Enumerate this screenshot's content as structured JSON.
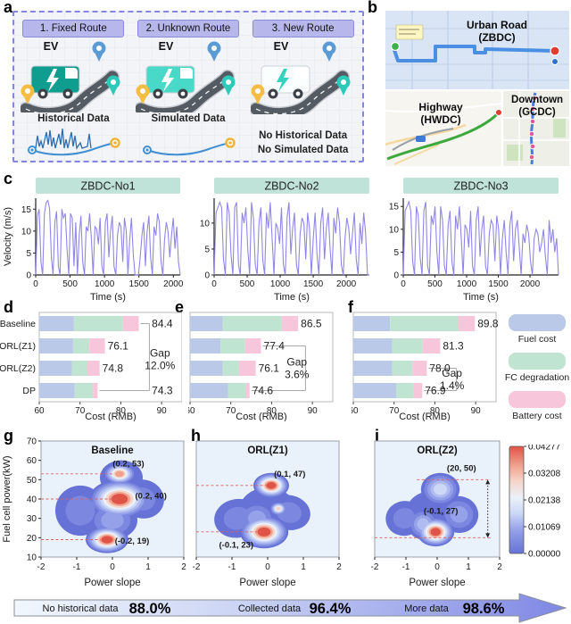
{
  "labels": {
    "a": "a",
    "b": "b",
    "c": "c",
    "d": "d",
    "e": "e",
    "f": "f",
    "g": "g",
    "h": "h",
    "i": "i"
  },
  "colors": {
    "velocity_line": "#9186e8",
    "chart_header_bg": "#bfe3d9",
    "plot_bg": "#e9f1fa",
    "bar_fuel": "#bac9e8",
    "bar_fc": "#c0e4d2",
    "bar_battery": "#f8c6da",
    "contour_scale": [
      "#6672d6",
      "#7c88e0",
      "#95a1e9",
      "#b0bcf0",
      "#cdd8f6",
      "#ebf1fa",
      "#f6d4c8",
      "#f0a18e",
      "#e05347"
    ],
    "guide_red": "#e06060",
    "arrow_light": "#f2f7fe",
    "arrow_dark": "#7f88e4"
  },
  "panel_a": {
    "cards": [
      {
        "header": "1. Fixed Route",
        "ev_label": "EV",
        "truck_color": "#0f9d8f",
        "bolt_color": "#ffffff",
        "data_label": "Historical Data",
        "sketch": "historical"
      },
      {
        "header": "2. Unknown Route",
        "ev_label": "EV",
        "truck_color": "#49d9c8",
        "bolt_color": "#ffffff",
        "data_label": "Simulated Data",
        "sketch": "route"
      },
      {
        "header": "3. New Route",
        "ev_label": "EV",
        "truck_color": "#fbfefe",
        "bolt_color": "#35d2c0",
        "data_label": "No Historical Data",
        "data_label2": "No Simulated Data",
        "sketch": "none"
      }
    ]
  },
  "panel_b": {
    "urban_title": "Urban Road",
    "urban_sub": "(ZBDC)",
    "highway_title": "Highway",
    "highway_sub": "(HWDC)",
    "downtown_title": "Downtown",
    "downtown_sub": "(GCDC)"
  },
  "legend": {
    "items": [
      {
        "label": "Fuel cost",
        "color": "#bac9e8"
      },
      {
        "label": "FC degradation",
        "color": "#c0e4d2"
      },
      {
        "label": "Battery cost",
        "color": "#f8c6da"
      }
    ]
  },
  "chart_data": [
    {
      "id": "c1",
      "type": "line",
      "title": "ZBDC-No1",
      "xlabel": "Time (s)",
      "ylabel": "Velocity (m/s)",
      "xlim": [
        0,
        2100
      ],
      "xticks": [
        0,
        500,
        1000,
        1500,
        2000
      ],
      "yticks": [
        0,
        5,
        10,
        15
      ],
      "ymax": 17.5,
      "values": [
        0,
        13.5,
        15,
        3,
        0,
        14,
        16.5,
        17,
        15,
        4,
        0,
        12,
        14.5,
        2,
        0,
        15,
        13,
        14,
        6,
        0,
        14,
        13,
        2,
        12,
        0,
        9,
        13.5,
        3,
        0,
        11,
        10,
        14,
        8,
        0,
        11,
        10.5,
        7,
        13,
        2,
        0,
        12,
        14,
        4,
        10,
        13.5,
        2,
        0,
        9,
        12,
        11,
        3,
        13,
        10,
        0,
        8,
        13,
        5,
        0,
        0,
        0,
        4,
        9,
        12,
        2,
        10,
        13.5,
        4,
        0,
        11,
        9,
        14,
        12,
        3,
        0,
        8,
        12,
        10,
        4,
        9,
        13,
        6,
        11,
        3,
        0
      ]
    },
    {
      "id": "c2",
      "type": "line",
      "title": "ZBDC-No2",
      "xlabel": "Time (s)",
      "ylabel": "",
      "xlim": [
        0,
        2350
      ],
      "xticks": [
        0,
        500,
        1000,
        1500,
        2000
      ],
      "yticks": [
        0,
        5,
        10
      ],
      "ymax": 14.8,
      "values": [
        0,
        12,
        13,
        14,
        13,
        3,
        0,
        14,
        12,
        4,
        0,
        13,
        14,
        2,
        0,
        12,
        10,
        13,
        5,
        0,
        14,
        11,
        2,
        0,
        10,
        13,
        3,
        0,
        12,
        9,
        14,
        7,
        0,
        10,
        9,
        6,
        13,
        2,
        0,
        11,
        14,
        4,
        9,
        12,
        2,
        0,
        8,
        11,
        10,
        3,
        12,
        9,
        0,
        7,
        12,
        4,
        0,
        10,
        13,
        3,
        9,
        12,
        5,
        0,
        11,
        8,
        13,
        10,
        2,
        0,
        7,
        11,
        9,
        4,
        8,
        12,
        3,
        0,
        10,
        6,
        12,
        8,
        0,
        0
      ]
    },
    {
      "id": "c3",
      "type": "line",
      "title": "ZBDC-No3",
      "xlabel": "Time (s)",
      "ylabel": "",
      "xlim": [
        0,
        2450
      ],
      "xticks": [
        0,
        500,
        1000,
        1500,
        2000
      ],
      "yticks": [
        0,
        5,
        10,
        15
      ],
      "ymax": 16.8,
      "values": [
        0,
        14,
        15,
        16,
        14,
        3,
        0,
        15,
        13,
        4,
        0,
        14,
        16,
        2,
        0,
        13,
        11,
        15,
        5,
        0,
        15,
        12,
        2,
        0,
        11,
        14,
        3,
        0,
        13,
        10,
        15,
        8,
        0,
        11,
        10,
        6,
        14,
        2,
        0,
        12,
        15,
        4,
        10,
        13,
        2,
        0,
        9,
        12,
        11,
        3,
        13,
        10,
        0,
        8,
        12,
        5,
        0,
        11,
        14,
        3,
        10,
        12,
        6,
        0,
        9,
        7,
        11,
        9,
        3,
        0,
        8,
        10,
        9,
        5,
        7,
        10,
        4,
        0,
        12,
        7,
        10,
        5,
        8,
        0
      ]
    },
    {
      "id": "d",
      "type": "stacked_bar_h",
      "xlabel": "Cost (RMB)",
      "xlim": [
        60,
        95
      ],
      "xticks": [
        60,
        70,
        80,
        90
      ],
      "show_categories": true,
      "categories": [
        "Baseline",
        "ORL(Z1)",
        "ORL(Z2)",
        "DP"
      ],
      "series": [
        "Fuel cost",
        "FC degradation",
        "Battery cost"
      ],
      "rows": [
        {
          "breaks": [
            68.5,
            80.5,
            84.4
          ],
          "label_x": 87.6
        },
        {
          "breaks": [
            68.3,
            72.3,
            76.1
          ]
        },
        {
          "breaks": [
            68.0,
            71.8,
            74.8
          ]
        },
        {
          "breaks": [
            68.7,
            73.2,
            74.3
          ],
          "label_x": 87.6
        }
      ],
      "gap_label": "Gap",
      "gap_value": "12.0%",
      "gap_pos": {
        "x": 89.6,
        "row": 1.55
      },
      "bracket": {
        "from": 0,
        "to": 3,
        "x": 87.0
      }
    },
    {
      "id": "e",
      "type": "stacked_bar_h",
      "xlabel": "Cost (RMB)",
      "xlim": [
        60,
        95
      ],
      "xticks": [
        60,
        70,
        80,
        90
      ],
      "show_categories": false,
      "categories": [
        "Baseline",
        "ORL(Z1)",
        "ORL(Z2)",
        "DP"
      ],
      "series": [
        "Fuel cost",
        "FC degradation",
        "Battery cost"
      ],
      "rows": [
        {
          "breaks": [
            68.0,
            82.5,
            86.5
          ]
        },
        {
          "breaks": [
            67.5,
            73.5,
            77.4
          ]
        },
        {
          "breaks": [
            68.0,
            72.0,
            76.1
          ]
        },
        {
          "breaks": [
            69.3,
            73.8,
            74.6
          ]
        }
      ],
      "gap_label": "Gap",
      "gap_value": "3.6%",
      "gap_pos": {
        "x": 86.2,
        "row": 1.95
      },
      "bracket": {
        "from": 1,
        "to": 3,
        "x": 88.3
      }
    },
    {
      "id": "f",
      "type": "stacked_bar_h",
      "xlabel": "Cost (RMB)",
      "xlim": [
        60,
        95
      ],
      "xticks": [
        60,
        70,
        80,
        90
      ],
      "show_categories": false,
      "categories": [
        "Baseline",
        "ORL(Z1)",
        "ORL(Z2)",
        "DP"
      ],
      "series": [
        "Fuel cost",
        "FC degradation",
        "Battery cost"
      ],
      "rows": [
        {
          "breaks": [
            69.0,
            85.8,
            89.8
          ]
        },
        {
          "breaks": [
            69.5,
            77.0,
            81.3
          ]
        },
        {
          "breaks": [
            69.5,
            74.5,
            78.0
          ]
        },
        {
          "breaks": [
            70.5,
            74.8,
            76.9
          ]
        }
      ],
      "gap_label": "Gap",
      "gap_value": "1.4%",
      "gap_pos": {
        "x": 84.2,
        "row": 2.45
      },
      "bracket": {
        "from": 2,
        "to": 3,
        "x": 85.3
      }
    },
    {
      "id": "g",
      "type": "contour",
      "title": "Baseline",
      "xlabel": "Power slope",
      "ylabel": "Fuel cell power(kW)",
      "xlim": [
        -2,
        2
      ],
      "ylim": [
        10,
        70
      ],
      "xticks": [
        -2,
        -1,
        0,
        1,
        2
      ],
      "yticks": [
        10,
        20,
        30,
        40,
        50,
        60,
        70
      ],
      "peaks": [
        {
          "x": 0.2,
          "y": 40,
          "sx": 0.85,
          "sy": 10,
          "c": 8
        },
        {
          "x": 0.2,
          "y": 53,
          "sx": 0.45,
          "sy": 5.5,
          "c": 7
        },
        {
          "x": -0.15,
          "y": 19,
          "sx": 0.6,
          "sy": 7,
          "c": 8
        },
        {
          "x": -0.9,
          "y": 34,
          "sx": 0.7,
          "sy": 13,
          "c": 1,
          "rot": -12
        },
        {
          "x": 0.85,
          "y": 40,
          "sx": 0.6,
          "sy": 10,
          "c": 1,
          "rot": 14
        },
        {
          "x": 0,
          "y": 29,
          "sx": 0.7,
          "sy": 10,
          "c": 2
        },
        {
          "x": 0.25,
          "y": 51,
          "sx": 0.6,
          "sy": 9,
          "c": 0
        }
      ],
      "annotations": [
        {
          "text": "(0.2, 53)",
          "x": 0.45,
          "y": 56.8
        },
        {
          "text": "(0.2, 40)",
          "x": 1.08,
          "y": 40.3
        },
        {
          "text": "(-0.2, 19)",
          "x": 0.55,
          "y": 17.0
        }
      ],
      "guides": [
        {
          "y": 53,
          "x2": 0.02
        },
        {
          "y": 40,
          "x2": 0.12
        },
        {
          "y": 19,
          "x2": -0.33
        }
      ]
    },
    {
      "id": "h",
      "type": "contour",
      "title": "ORL(Z1)",
      "xlabel": "Power slope",
      "ylabel": "",
      "xlim": [
        -2,
        2
      ],
      "ylim": [
        10,
        70
      ],
      "xticks": [
        -2,
        -1,
        0,
        1,
        2
      ],
      "yticks": [],
      "peaks": [
        {
          "x": 0.1,
          "y": 47,
          "sx": 0.5,
          "sy": 6.5,
          "c": 8
        },
        {
          "x": -0.1,
          "y": 23,
          "sx": 0.68,
          "sy": 8.5,
          "c": 8
        },
        {
          "x": 0.3,
          "y": 35,
          "sx": 0.24,
          "sy": 3.5,
          "c": 6
        },
        {
          "x": -0.85,
          "y": 30,
          "sx": 0.65,
          "sy": 10,
          "c": 1,
          "rot": -10
        },
        {
          "x": 0.6,
          "y": 33,
          "sx": 0.6,
          "sy": 9,
          "c": 1,
          "rot": 12
        },
        {
          "x": 0,
          "y": 34,
          "sx": 0.8,
          "sy": 12,
          "c": 0
        },
        {
          "x": -0.3,
          "y": 30,
          "sx": 0.55,
          "sy": 9,
          "c": 2
        }
      ],
      "annotations": [
        {
          "text": "(0.1, 47)",
          "x": 0.62,
          "y": 51.5
        },
        {
          "text": "(-0.1, 23)",
          "x": -0.88,
          "y": 14.8
        }
      ],
      "guides": [
        {
          "y": 47,
          "x2": 0.02
        },
        {
          "y": 23,
          "x2": -0.18
        }
      ]
    },
    {
      "id": "i",
      "type": "contour",
      "title": "ORL(Z2)",
      "xlabel": "Power slope",
      "ylabel": "",
      "xlim": [
        -2,
        2
      ],
      "ylim": [
        10,
        70
      ],
      "xticks": [
        -2,
        -1,
        0,
        1,
        2
      ],
      "yticks": [],
      "peaks": [
        {
          "x": -0.05,
          "y": 23,
          "sx": 0.6,
          "sy": 7.5,
          "c": 8
        },
        {
          "x": 0.1,
          "y": 45,
          "sx": 0.62,
          "sy": 8.5,
          "c": 4
        },
        {
          "x": -1.05,
          "y": 30,
          "sx": 0.6,
          "sy": 9,
          "c": 1,
          "rot": -10
        },
        {
          "x": 0.7,
          "y": 32,
          "sx": 0.62,
          "sy": 9.5,
          "c": 2,
          "rot": 10
        },
        {
          "x": -0.2,
          "y": 33,
          "sx": 0.8,
          "sy": 11,
          "c": 0
        },
        {
          "x": -0.45,
          "y": 27,
          "sx": 0.5,
          "sy": 8,
          "c": 3
        }
      ],
      "annotations": [
        {
          "text": "(20, 50)",
          "x": 0.78,
          "y": 54.5
        },
        {
          "text": "(-0.1, 27)",
          "x": 0.12,
          "y": 32.5
        }
      ],
      "guides": [
        {
          "y": 50,
          "x1": -0.65,
          "x2": 1.72
        },
        {
          "y": 20,
          "x1": -2,
          "x2": 1.72
        }
      ],
      "range_arrow": {
        "x": 1.62,
        "y1": 20,
        "y2": 50
      }
    },
    {
      "id": "cbar",
      "type": "colorbar",
      "ticks": [
        "0.04277",
        "0.03208",
        "0.02138",
        "0.01069",
        "0.00000"
      ]
    },
    {
      "id": "arrow",
      "type": "progress_arrow",
      "items": [
        {
          "label": "No historical data",
          "value": "88.0%"
        },
        {
          "label": "Collected data",
          "value": "96.4%"
        },
        {
          "label": "More data",
          "value": "98.6%"
        }
      ]
    }
  ]
}
